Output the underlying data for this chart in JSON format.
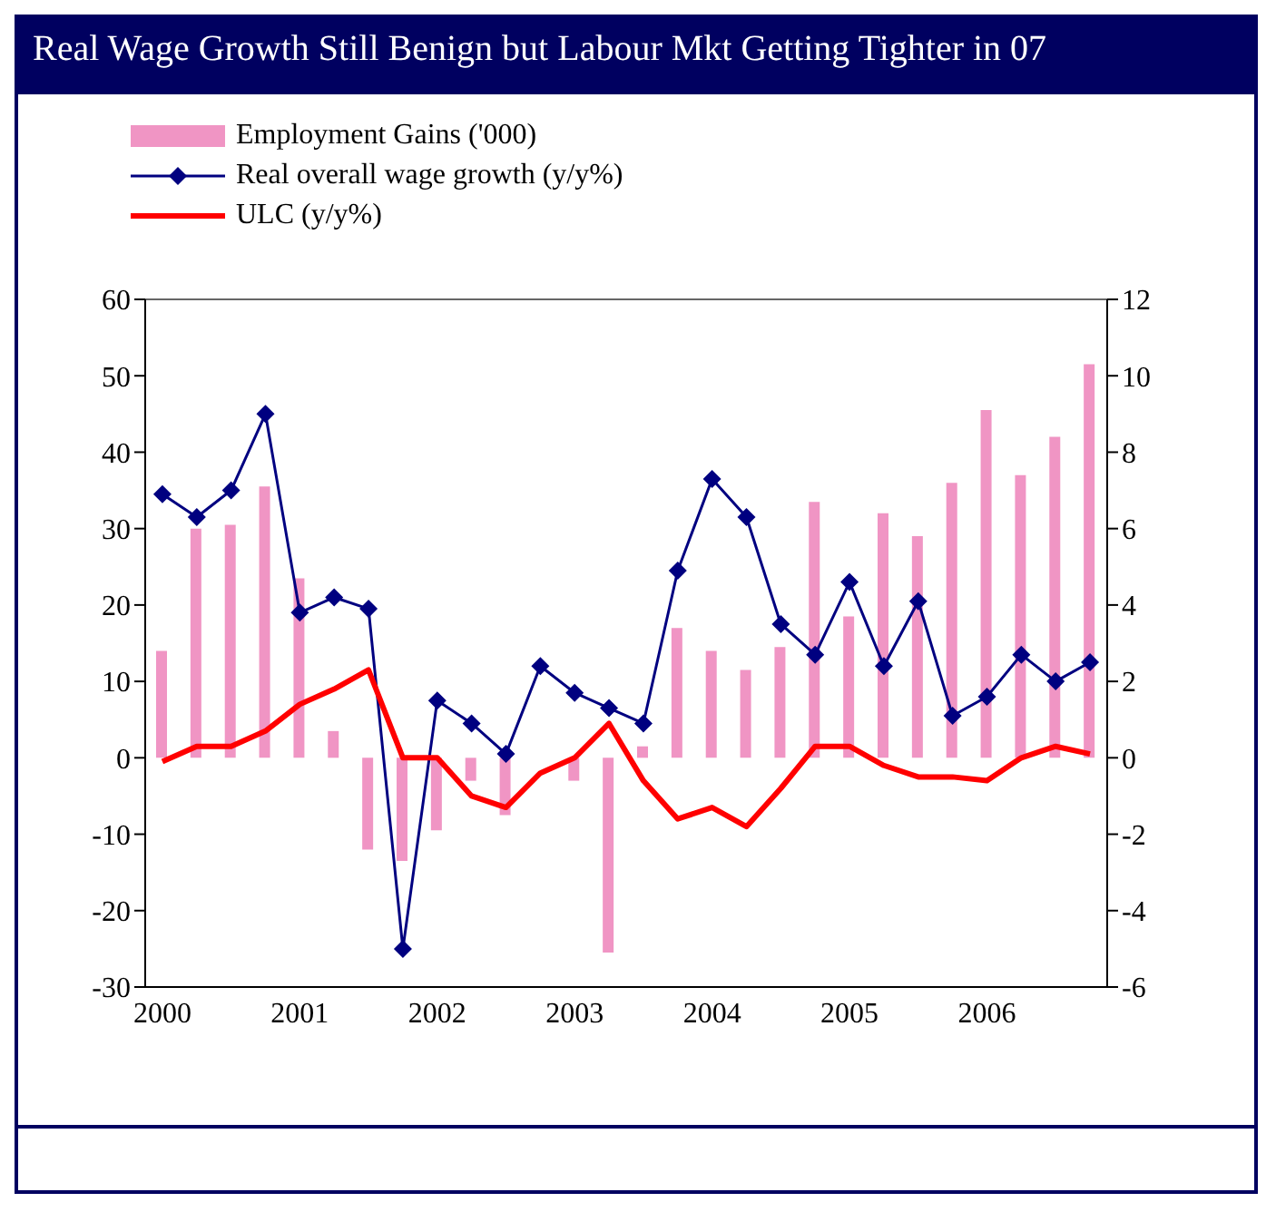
{
  "chart_data": {
    "type": "bar",
    "title": "Real Wage Growth Still Benign but Labour Mkt Getting Tighter in 07",
    "categories": [
      "2000",
      null,
      null,
      null,
      "2001",
      null,
      null,
      null,
      "2002",
      null,
      null,
      null,
      "2003",
      null,
      null,
      null,
      "2004",
      null,
      null,
      null,
      "2005",
      null,
      null,
      null,
      "2006",
      null,
      null,
      null
    ],
    "series": [
      {
        "name": "Employment Gains ('000)",
        "color": "#f095c4",
        "values": [
          14,
          30,
          30.5,
          35.5,
          23.5,
          3.5,
          -12,
          -13.5,
          -9.5,
          -3,
          -7.5,
          0,
          -3,
          -25.5,
          1.5,
          17,
          14,
          11.5,
          14.5,
          33.5,
          18.5,
          32,
          29,
          36,
          45.5,
          37,
          42,
          51.5
        ]
      },
      {
        "name": "Real overall wage growth (y/y%)",
        "type": "line",
        "axis": "y2",
        "color": "#000080",
        "marker": "diamond",
        "values": [
          6.9,
          6.3,
          7.0,
          9.0,
          3.8,
          4.2,
          3.9,
          -5.0,
          1.5,
          0.9,
          0.1,
          2.4,
          1.7,
          1.3,
          0.9,
          4.9,
          7.3,
          6.3,
          3.5,
          2.7,
          4.6,
          2.4,
          4.1,
          1.1,
          1.6,
          2.7,
          2.0,
          2.5
        ]
      },
      {
        "name": "ULC (y/y%)",
        "type": "line",
        "axis": "y2",
        "color": "#ff0000",
        "marker": "none",
        "values": [
          -0.1,
          0.3,
          0.3,
          0.7,
          1.4,
          1.8,
          2.3,
          0,
          0,
          -1.0,
          -1.3,
          -0.4,
          0,
          0.9,
          -0.6,
          -1.6,
          -1.3,
          -1.8,
          -0.8,
          0.3,
          0.3,
          -0.2,
          -0.5,
          -0.5,
          -0.6,
          0,
          0.3,
          0.1
        ]
      }
    ],
    "ylim": [
      -30,
      60
    ],
    "yticks": [
      -30,
      -20,
      -10,
      0,
      10,
      20,
      30,
      40,
      50,
      60
    ],
    "y2lim": [
      -6,
      12
    ],
    "y2ticks": [
      -6,
      -4,
      -2,
      0,
      2,
      4,
      6,
      8,
      10,
      12
    ],
    "grid": false,
    "legend": "top left"
  }
}
